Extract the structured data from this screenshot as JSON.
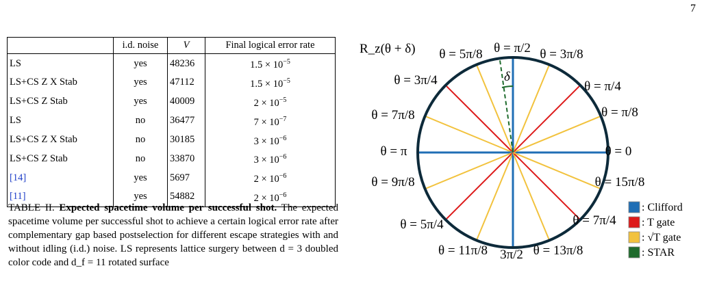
{
  "page_number": "7",
  "table": {
    "headers": [
      "",
      "i.d. noise",
      "V",
      "Final logical error rate"
    ],
    "rows": [
      {
        "name": "LS",
        "noise": "yes",
        "volume": "48236",
        "rate_mantissa": "1.5",
        "rate_exp": "−5"
      },
      {
        "name": "LS+CS Z X Stab",
        "noise": "yes",
        "volume": "47112",
        "rate_mantissa": "1.5",
        "rate_exp": "−5"
      },
      {
        "name": "LS+CS Z Stab",
        "noise": "yes",
        "volume": "40009",
        "rate_mantissa": "2",
        "rate_exp": "−5"
      },
      {
        "name": "LS",
        "noise": "no",
        "volume": "36477",
        "rate_mantissa": "7",
        "rate_exp": "−7"
      },
      {
        "name": "LS+CS Z X Stab",
        "noise": "no",
        "volume": "30185",
        "rate_mantissa": "3",
        "rate_exp": "−6"
      },
      {
        "name": "LS+CS Z Stab",
        "noise": "no",
        "volume": "33870",
        "rate_mantissa": "3",
        "rate_exp": "−6"
      },
      {
        "name": "[14]",
        "noise": "yes",
        "volume": "5697",
        "rate_mantissa": "2",
        "rate_exp": "−6",
        "is_ref": true
      },
      {
        "name": "[11]",
        "noise": "yes",
        "volume": "54882",
        "rate_mantissa": "2",
        "rate_exp": "−6",
        "is_ref": true
      }
    ]
  },
  "caption": {
    "label": "TABLE II.",
    "title": "Expected spacetime volume per successful shot.",
    "body": "The expected spacetime volume per successful shot to achieve a certain logical error rate after complementary gap based postselection for different escape strategies with and without idling (i.d.) noise. LS represents lattice surgery between d = 3 doubled color code and d_f = 11 rotated surface"
  },
  "diagram": {
    "rotation_label": "R_z(θ + δ)",
    "delta_label": "δ",
    "angle_labels": [
      "θ = π/2",
      "θ = 3π/8",
      "θ = π/4",
      "θ = π/8",
      "θ = 0",
      "θ = 15π/8",
      "θ = 7π/4",
      "θ = 13π/8",
      "3π/2",
      "θ = 11π/8",
      "θ = 5π/4",
      "θ = 9π/8",
      "θ = π",
      "θ = 7π/8",
      "θ = 3π/4",
      "θ = 5π/8"
    ],
    "colors": {
      "circle": "#0d2a3a",
      "clifford": "#1f6eb5",
      "t_gate": "#dd1a1a",
      "sqrt_t_gate": "#f2c23d",
      "star": "#1e6b2c"
    },
    "legend": [
      {
        "label": ": Clifford",
        "color_key": "clifford"
      },
      {
        "label": ": T gate",
        "color_key": "t_gate"
      },
      {
        "label": ": √T gate",
        "color_key": "sqrt_t_gate"
      },
      {
        "label": ": STAR",
        "color_key": "star"
      }
    ]
  }
}
